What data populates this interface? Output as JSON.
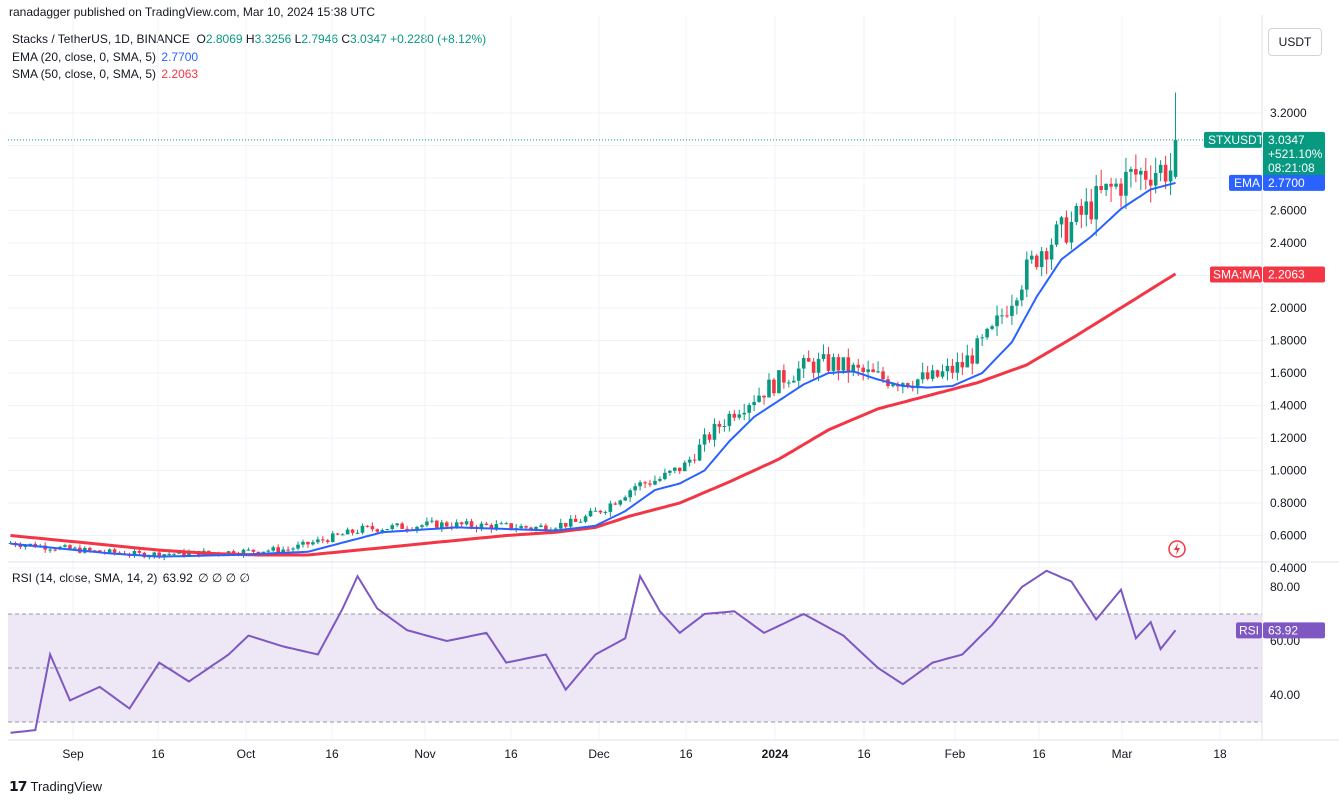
{
  "header": {
    "published": "ranadagger published on TradingView.com, Mar 10, 2024 15:38 UTC"
  },
  "legend": {
    "symbol": "Stacks / TetherUS, 1D, BINANCE",
    "o_label": "O",
    "o": "2.8069",
    "h_label": "H",
    "h": "3.3256",
    "l_label": "L",
    "l": "2.7946",
    "c_label": "C",
    "c": "3.0347",
    "change": "+0.2280 (+8.12%)",
    "ema_label": "EMA (20, close, 0, SMA, 5)",
    "ema_value": "2.7700",
    "sma_label": "SMA (50, close, 0, SMA, 5)",
    "sma_value": "2.2063",
    "rsi_label": "RSI (14, close, SMA, 14, 2)",
    "rsi_value": "63.92",
    "rsi_extra": "∅ ∅ ∅ ∅"
  },
  "toolbar": {
    "currency_button": "USDT"
  },
  "price_axis": [
    "3.2000",
    "3.0000",
    "2.8000",
    "2.6000",
    "2.4000",
    "2.2000",
    "2.0000",
    "1.8000",
    "1.6000",
    "1.4000",
    "1.2000",
    "1.0000",
    "0.8000",
    "0.6000",
    "0.4000"
  ],
  "rsi_axis": [
    "80.00",
    "60.00",
    "40.00"
  ],
  "time_axis": [
    "Sep",
    "16",
    "Oct",
    "16",
    "Nov",
    "16",
    "Dec",
    "16",
    "2024",
    "16",
    "Feb",
    "16",
    "Mar",
    "18"
  ],
  "tags": {
    "symbol_tag": "STXUSDT",
    "price": "3.0347",
    "change_pct": "+521.10%",
    "countdown": "08:21:08",
    "ema_tag": "EMA",
    "ema_value": "2.7700",
    "sma_tag": "SMA:MA",
    "sma_value": "2.2063",
    "rsi_tag": "RSI",
    "rsi_value": "63.92"
  },
  "colors": {
    "up": "#089981",
    "down": "#f23645",
    "ema": "#2962ff",
    "sma": "#f23645",
    "rsi": "#7e57c2",
    "rsi_band": "#ede7f6",
    "grid": "#f0f3fa"
  },
  "icons": {
    "flash": "flash-icon",
    "brand": "tradingview-logo-icon"
  },
  "footer": {
    "brand": "TradingView"
  },
  "chart_data": {
    "type": "candlestick",
    "title": "Stacks / TetherUS, 1D, BINANCE",
    "price_range": [
      0.3,
      3.45
    ],
    "rsi_range": [
      25,
      90
    ],
    "rsi_bands": [
      70,
      50,
      30
    ],
    "last": {
      "open": 2.8069,
      "high": 3.3256,
      "low": 2.7946,
      "close": 3.0347
    },
    "series": [
      {
        "name": "EMA (20, close, 0, SMA, 5)",
        "points": [
          [
            0,
            0.55
          ],
          [
            10,
            0.52
          ],
          [
            20,
            0.49
          ],
          [
            30,
            0.47
          ],
          [
            45,
            0.48
          ],
          [
            60,
            0.5
          ],
          [
            75,
            0.62
          ],
          [
            90,
            0.65
          ],
          [
            100,
            0.64
          ],
          [
            110,
            0.63
          ],
          [
            118,
            0.66
          ],
          [
            124,
            0.75
          ],
          [
            130,
            0.88
          ],
          [
            135,
            0.92
          ],
          [
            140,
            1.0
          ],
          [
            145,
            1.18
          ],
          [
            150,
            1.33
          ],
          [
            155,
            1.43
          ],
          [
            160,
            1.53
          ],
          [
            165,
            1.6
          ],
          [
            170,
            1.61
          ],
          [
            175,
            1.56
          ],
          [
            180,
            1.52
          ],
          [
            185,
            1.51
          ],
          [
            190,
            1.52
          ],
          [
            196,
            1.6
          ],
          [
            202,
            1.79
          ],
          [
            207,
            2.07
          ],
          [
            212,
            2.3
          ],
          [
            218,
            2.44
          ],
          [
            224,
            2.61
          ],
          [
            230,
            2.73
          ],
          [
            235,
            2.77
          ]
        ]
      },
      {
        "name": "SMA (50, close, 0, SMA, 5)",
        "points": [
          [
            0,
            0.6
          ],
          [
            10,
            0.57
          ],
          [
            20,
            0.54
          ],
          [
            30,
            0.51
          ],
          [
            40,
            0.49
          ],
          [
            50,
            0.48
          ],
          [
            60,
            0.48
          ],
          [
            70,
            0.51
          ],
          [
            80,
            0.54
          ],
          [
            90,
            0.57
          ],
          [
            100,
            0.6
          ],
          [
            110,
            0.62
          ],
          [
            118,
            0.65
          ],
          [
            125,
            0.72
          ],
          [
            135,
            0.8
          ],
          [
            145,
            0.93
          ],
          [
            155,
            1.07
          ],
          [
            165,
            1.25
          ],
          [
            175,
            1.38
          ],
          [
            185,
            1.46
          ],
          [
            195,
            1.54
          ],
          [
            205,
            1.65
          ],
          [
            215,
            1.83
          ],
          [
            225,
            2.02
          ],
          [
            235,
            2.21
          ]
        ]
      },
      {
        "name": "RSI (14, close, SMA, 14, 2)",
        "points": [
          [
            0,
            26
          ],
          [
            5,
            27
          ],
          [
            8,
            55
          ],
          [
            12,
            38
          ],
          [
            18,
            43
          ],
          [
            24,
            35
          ],
          [
            30,
            52
          ],
          [
            36,
            45
          ],
          [
            44,
            55
          ],
          [
            48,
            62
          ],
          [
            55,
            58
          ],
          [
            62,
            55
          ],
          [
            67,
            72
          ],
          [
            70,
            84
          ],
          [
            74,
            72
          ],
          [
            80,
            64
          ],
          [
            88,
            60
          ],
          [
            96,
            63
          ],
          [
            100,
            52
          ],
          [
            108,
            55
          ],
          [
            112,
            42
          ],
          [
            118,
            55
          ],
          [
            124,
            61
          ],
          [
            127,
            84
          ],
          [
            131,
            71
          ],
          [
            135,
            63
          ],
          [
            140,
            70
          ],
          [
            146,
            71
          ],
          [
            152,
            63
          ],
          [
            160,
            70
          ],
          [
            168,
            62
          ],
          [
            175,
            50
          ],
          [
            180,
            44
          ],
          [
            186,
            52
          ],
          [
            192,
            55
          ],
          [
            198,
            66
          ],
          [
            204,
            80
          ],
          [
            209,
            86
          ],
          [
            214,
            82
          ],
          [
            219,
            68
          ],
          [
            224,
            79
          ],
          [
            227,
            61
          ],
          [
            230,
            67
          ],
          [
            232,
            57
          ],
          [
            235,
            64
          ]
        ]
      }
    ]
  }
}
